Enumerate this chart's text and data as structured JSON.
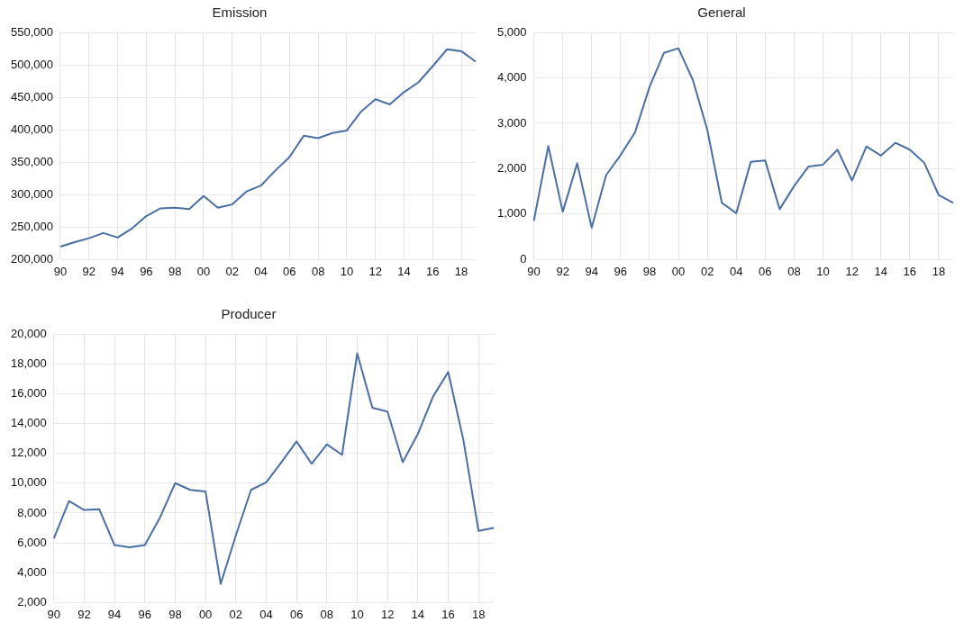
{
  "chart_data": [
    {
      "type": "line",
      "title": "Emission",
      "categories": [
        "90",
        null,
        "92",
        null,
        "94",
        null,
        "96",
        null,
        "98",
        null,
        "00",
        null,
        "02",
        null,
        "04",
        null,
        "06",
        null,
        "08",
        null,
        "10",
        null,
        "12",
        null,
        "14",
        null,
        "16",
        null,
        "18",
        null
      ],
      "series": [
        {
          "color": "#4a6fa5",
          "values": [
            220000,
            227000,
            233000,
            241000,
            234000,
            248000,
            267000,
            279000,
            280000,
            278000,
            298000,
            280000,
            285000,
            305000,
            314000,
            337000,
            358000,
            391000,
            387000,
            395000,
            399000,
            428000,
            447000,
            439000,
            458000,
            473000,
            498000,
            524000,
            521000,
            505000
          ]
        }
      ],
      "ylim": [
        200000,
        550000
      ],
      "yticks": [
        {
          "value": 200000,
          "label": "200,000"
        },
        {
          "value": 250000,
          "label": "250,000"
        },
        {
          "value": 300000,
          "label": "300,000"
        },
        {
          "value": 350000,
          "label": "350,000"
        },
        {
          "value": 400000,
          "label": "400,000"
        },
        {
          "value": 450000,
          "label": "450,000"
        },
        {
          "value": 500000,
          "label": "500,000"
        },
        {
          "value": 550000,
          "label": "550,000"
        }
      ],
      "grid": true,
      "legend": false,
      "marker": "none",
      "line_style": "solid"
    },
    {
      "type": "line",
      "title": "General",
      "categories": [
        "90",
        null,
        "92",
        null,
        "94",
        null,
        "96",
        null,
        "98",
        null,
        "00",
        null,
        "02",
        null,
        "04",
        null,
        "06",
        null,
        "08",
        null,
        "10",
        null,
        "12",
        null,
        "14",
        null,
        "16",
        null,
        "18",
        null
      ],
      "series": [
        {
          "color": "#4a6fa5",
          "values": [
            850,
            2500,
            1050,
            2120,
            700,
            1860,
            2300,
            2800,
            3800,
            4550,
            4650,
            3950,
            2850,
            1250,
            1020,
            2150,
            2180,
            1110,
            1620,
            2050,
            2090,
            2420,
            1740,
            2490,
            2290,
            2570,
            2420,
            2130,
            1420,
            1250
          ]
        }
      ],
      "ylim": [
        0,
        5000
      ],
      "yticks": [
        0,
        {
          "value": 1000,
          "label": "1,000"
        },
        {
          "value": 2000,
          "label": "2,000"
        },
        {
          "value": 3000,
          "label": "3,000"
        },
        {
          "value": 4000,
          "label": "4,000"
        },
        {
          "value": 5000,
          "label": "5,000"
        }
      ],
      "grid": true,
      "legend": false,
      "marker": "none",
      "line_style": "solid"
    },
    {
      "type": "line",
      "title": "Producer",
      "categories": [
        "90",
        null,
        "92",
        null,
        "94",
        null,
        "96",
        null,
        "98",
        null,
        "00",
        null,
        "02",
        null,
        "04",
        null,
        "06",
        null,
        "08",
        null,
        "10",
        null,
        "12",
        null,
        "14",
        null,
        "16",
        null,
        "18",
        null
      ],
      "series": [
        {
          "color": "#4a6fa5",
          "values": [
            6300,
            8800,
            8200,
            8250,
            5850,
            5700,
            5850,
            7700,
            10000,
            9550,
            9450,
            3250,
            6500,
            9550,
            10050,
            11400,
            12800,
            11300,
            12600,
            11900,
            18700,
            15050,
            14800,
            11400,
            13300,
            15800,
            17450,
            12900,
            6800,
            7000
          ]
        }
      ],
      "ylim": [
        2000,
        20000
      ],
      "yticks": [
        {
          "value": 2000,
          "label": "2,000"
        },
        {
          "value": 4000,
          "label": "4,000"
        },
        {
          "value": 6000,
          "label": "6,000"
        },
        {
          "value": 8000,
          "label": "8,000"
        },
        {
          "value": 10000,
          "label": "10,000"
        },
        {
          "value": 12000,
          "label": "12,000"
        },
        {
          "value": 14000,
          "label": "14,000"
        },
        {
          "value": 16000,
          "label": "16,000"
        },
        {
          "value": 18000,
          "label": "18,000"
        },
        {
          "value": 20000,
          "label": "20,000"
        }
      ],
      "grid": true,
      "legend": false,
      "marker": "none",
      "line_style": "solid"
    }
  ]
}
